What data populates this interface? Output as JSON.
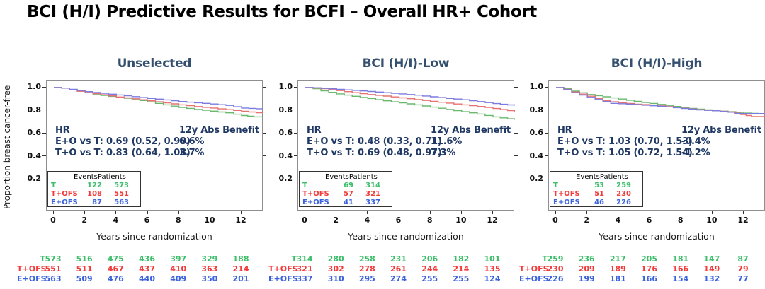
{
  "title": "BCI (H/I) Predictive Results for BCFI  – Overall HR+ Cohort",
  "y_axis_label": "Proportion breast cancer-free",
  "x_axis_label": "Years since randomization",
  "colors": {
    "curve": {
      "t": "#69B86E",
      "t_ofs": "#E87272",
      "e_ofs": "#7B7BE0"
    },
    "text": {
      "t": "#3DBE6B",
      "t_ofs": "#F23B3B",
      "e_ofs": "#3A62DD"
    },
    "panel_title": "#34506E",
    "hr_text": "#1F3864",
    "main_title": "#000000"
  },
  "axes": {
    "y_ticks": [
      "1.0",
      "0.8",
      "0.6",
      "0.4",
      "0.2"
    ],
    "x_ticks": [
      "0",
      "2",
      "4",
      "6",
      "8",
      "10",
      "12"
    ]
  },
  "panels": [
    {
      "title": "Unselected",
      "hr": {
        "header": "HR",
        "lines": [
          "E+O vs T: 0.69 (0.52, 0.90)",
          "T+O vs T: 0.83 (0.64, 1.08)"
        ]
      },
      "benefit": {
        "header": "12y Abs Benefit",
        "values": [
          "6.6%",
          "3.7%"
        ]
      },
      "events_table": {
        "header": "EventsPatients",
        "rows": [
          {
            "key": "t",
            "label": "T",
            "events": "122",
            "patients": "573"
          },
          {
            "key": "t_ofs",
            "label": "T+OFS",
            "events": "108",
            "patients": "551"
          },
          {
            "key": "e_ofs",
            "label": "E+OFS",
            "events": "87",
            "patients": "563"
          }
        ]
      },
      "at_risk": {
        "rows": [
          {
            "key": "t",
            "label": "T",
            "values": [
              "573",
              "516",
              "475",
              "436",
              "397",
              "329",
              "188"
            ]
          },
          {
            "key": "t_ofs",
            "label": "T+OFS",
            "values": [
              "551",
              "511",
              "467",
              "437",
              "410",
              "363",
              "214"
            ]
          },
          {
            "key": "e_ofs",
            "label": "E+OFS",
            "values": [
              "563",
              "509",
              "476",
              "440",
              "409",
              "350",
              "201"
            ]
          }
        ]
      }
    },
    {
      "title": "BCI (H/I)-Low",
      "hr": {
        "header": "HR",
        "lines": [
          "E+O vs T: 0.48 (0.33, 0.71)",
          "T+O vs T: 0.69 (0.48, 0.97)"
        ]
      },
      "benefit": {
        "header": "12y Abs Benefit",
        "values": [
          "11.6%",
          "7.3%"
        ]
      },
      "events_table": {
        "header": "EventsPatients",
        "rows": [
          {
            "key": "t",
            "label": "T",
            "events": "69",
            "patients": "314"
          },
          {
            "key": "t_ofs",
            "label": "T+OFS",
            "events": "57",
            "patients": "321"
          },
          {
            "key": "e_ofs",
            "label": "E+OFS",
            "events": "41",
            "patients": "337"
          }
        ]
      },
      "at_risk": {
        "rows": [
          {
            "key": "t",
            "label": "T",
            "values": [
              "314",
              "280",
              "258",
              "231",
              "206",
              "182",
              "101"
            ]
          },
          {
            "key": "t_ofs",
            "label": "T+OFS",
            "values": [
              "321",
              "302",
              "278",
              "261",
              "244",
              "214",
              "135"
            ]
          },
          {
            "key": "e_ofs",
            "label": "E+OFS",
            "values": [
              "337",
              "310",
              "295",
              "274",
              "255",
              "255",
              "124"
            ]
          }
        ]
      }
    },
    {
      "title": "BCI (H/I)-High",
      "hr": {
        "header": "HR",
        "lines": [
          "E+O vs T: 1.03 (0.70, 1.53)",
          "T+O vs T: 1.05 (0.72, 1.54)"
        ]
      },
      "benefit": {
        "header": "12y Abs Benefit",
        "values": [
          "-0.4%",
          "-1.2%"
        ]
      },
      "events_table": {
        "header": "EventsPatients",
        "rows": [
          {
            "key": "t",
            "label": "T",
            "events": "53",
            "patients": "259"
          },
          {
            "key": "t_ofs",
            "label": "T+OFS",
            "events": "51",
            "patients": "230"
          },
          {
            "key": "e_ofs",
            "label": "E+OFS",
            "events": "46",
            "patients": "226"
          }
        ]
      },
      "at_risk": {
        "rows": [
          {
            "key": "t",
            "label": "T",
            "values": [
              "259",
              "236",
              "217",
              "205",
              "181",
              "147",
              "87"
            ]
          },
          {
            "key": "t_ofs",
            "label": "T+OFS",
            "values": [
              "230",
              "209",
              "189",
              "176",
              "166",
              "149",
              "79"
            ]
          },
          {
            "key": "e_ofs",
            "label": "E+OFS",
            "values": [
              "226",
              "199",
              "181",
              "166",
              "154",
              "132",
              "77"
            ]
          }
        ]
      }
    }
  ],
  "chart_data": [
    {
      "type": "line",
      "subtype": "kaplan-meier-step",
      "title": "Unselected",
      "xlabel": "Years since randomization",
      "ylabel": "Proportion breast cancer-free",
      "xlim": [
        0,
        13.4
      ],
      "x_ticks": [
        0,
        2,
        4,
        6,
        8,
        10,
        12
      ],
      "y_ticks": [
        1.0,
        0.8,
        0.6,
        0.4,
        0.2
      ],
      "legend_position": "events-box lower-left",
      "series": [
        {
          "name": "T",
          "key": "t",
          "points": [
            [
              0,
              1.0
            ],
            [
              0.5,
              0.995
            ],
            [
              1,
              0.982
            ],
            [
              2,
              0.955
            ],
            [
              3,
              0.932
            ],
            [
              4,
              0.915
            ],
            [
              5,
              0.9
            ],
            [
              6,
              0.875
            ],
            [
              7,
              0.85
            ],
            [
              8,
              0.828
            ],
            [
              9,
              0.81
            ],
            [
              10,
              0.795
            ],
            [
              11,
              0.78
            ],
            [
              12,
              0.757
            ],
            [
              12.8,
              0.745
            ],
            [
              13.4,
              0.74
            ]
          ]
        },
        {
          "name": "T+OFS",
          "key": "t_ofs",
          "points": [
            [
              0,
              1.0
            ],
            [
              0.5,
              0.995
            ],
            [
              1,
              0.98
            ],
            [
              2,
              0.956
            ],
            [
              3,
              0.938
            ],
            [
              4,
              0.918
            ],
            [
              5,
              0.903
            ],
            [
              6,
              0.885
            ],
            [
              7,
              0.867
            ],
            [
              8,
              0.85
            ],
            [
              9,
              0.835
            ],
            [
              10,
              0.822
            ],
            [
              11,
              0.808
            ],
            [
              12,
              0.794
            ],
            [
              13.4,
              0.775
            ]
          ]
        },
        {
          "name": "E+OFS",
          "key": "e_ofs",
          "points": [
            [
              0,
              1.0
            ],
            [
              0.5,
              0.996
            ],
            [
              1,
              0.985
            ],
            [
              2,
              0.965
            ],
            [
              3,
              0.95
            ],
            [
              4,
              0.936
            ],
            [
              5,
              0.921
            ],
            [
              6,
              0.906
            ],
            [
              7,
              0.893
            ],
            [
              8,
              0.879
            ],
            [
              9,
              0.868
            ],
            [
              10,
              0.857
            ],
            [
              11,
              0.845
            ],
            [
              12,
              0.822
            ],
            [
              13.4,
              0.813
            ]
          ]
        }
      ]
    },
    {
      "type": "line",
      "subtype": "kaplan-meier-step",
      "title": "BCI (H/I)-Low",
      "xlabel": "Years since randomization",
      "ylabel": "Proportion breast cancer-free",
      "xlim": [
        0,
        13.4
      ],
      "x_ticks": [
        0,
        2,
        4,
        6,
        8,
        10,
        12
      ],
      "y_ticks": [
        1.0,
        0.8,
        0.6,
        0.4,
        0.2
      ],
      "legend_position": "events-box lower-left",
      "series": [
        {
          "name": "T",
          "key": "t",
          "points": [
            [
              0,
              1.0
            ],
            [
              0.5,
              0.99
            ],
            [
              1,
              0.972
            ],
            [
              2,
              0.945
            ],
            [
              3,
              0.924
            ],
            [
              4,
              0.905
            ],
            [
              5,
              0.885
            ],
            [
              6,
              0.867
            ],
            [
              7,
              0.85
            ],
            [
              8,
              0.83
            ],
            [
              9,
              0.81
            ],
            [
              10,
              0.79
            ],
            [
              11,
              0.77
            ],
            [
              12,
              0.745
            ],
            [
              13.4,
              0.72
            ]
          ]
        },
        {
          "name": "T+OFS",
          "key": "t_ofs",
          "points": [
            [
              0,
              1.0
            ],
            [
              0.5,
              0.997
            ],
            [
              1,
              0.99
            ],
            [
              2,
              0.974
            ],
            [
              3,
              0.956
            ],
            [
              4,
              0.94
            ],
            [
              5,
              0.926
            ],
            [
              6,
              0.911
            ],
            [
              7,
              0.896
            ],
            [
              8,
              0.88
            ],
            [
              9,
              0.865
            ],
            [
              10,
              0.85
            ],
            [
              11,
              0.836
            ],
            [
              12,
              0.818
            ],
            [
              13.4,
              0.79
            ]
          ]
        },
        {
          "name": "E+OFS",
          "key": "e_ofs",
          "points": [
            [
              0,
              1.0
            ],
            [
              0.5,
              0.998
            ],
            [
              1,
              0.994
            ],
            [
              2,
              0.985
            ],
            [
              3,
              0.976
            ],
            [
              4,
              0.966
            ],
            [
              5,
              0.956
            ],
            [
              6,
              0.945
            ],
            [
              7,
              0.934
            ],
            [
              8,
              0.92
            ],
            [
              9,
              0.906
            ],
            [
              10,
              0.894
            ],
            [
              11,
              0.878
            ],
            [
              12,
              0.861
            ],
            [
              13.4,
              0.843
            ]
          ]
        }
      ]
    },
    {
      "type": "line",
      "subtype": "kaplan-meier-step",
      "title": "BCI (H/I)-High",
      "xlabel": "Years since randomization",
      "ylabel": "Proportion breast cancer-free",
      "xlim": [
        0,
        13.4
      ],
      "x_ticks": [
        0,
        2,
        4,
        6,
        8,
        10,
        12
      ],
      "y_ticks": [
        1.0,
        0.8,
        0.6,
        0.4,
        0.2
      ],
      "legend_position": "events-box lower-left",
      "series": [
        {
          "name": "T",
          "key": "t",
          "points": [
            [
              0,
              1.0
            ],
            [
              0.5,
              0.99
            ],
            [
              1,
              0.97
            ],
            [
              2,
              0.94
            ],
            [
              3,
              0.92
            ],
            [
              4,
              0.9
            ],
            [
              5,
              0.88
            ],
            [
              6,
              0.862
            ],
            [
              7,
              0.845
            ],
            [
              8,
              0.826
            ],
            [
              9,
              0.812
            ],
            [
              10,
              0.8
            ],
            [
              11,
              0.79
            ],
            [
              12,
              0.778
            ],
            [
              13.4,
              0.77
            ]
          ]
        },
        {
          "name": "T+OFS",
          "key": "t_ofs",
          "points": [
            [
              0,
              1.0
            ],
            [
              0.5,
              0.985
            ],
            [
              1,
              0.962
            ],
            [
              2,
              0.925
            ],
            [
              3,
              0.885
            ],
            [
              4,
              0.868
            ],
            [
              5,
              0.856
            ],
            [
              6,
              0.847
            ],
            [
              7,
              0.835
            ],
            [
              8,
              0.82
            ],
            [
              9,
              0.808
            ],
            [
              10,
              0.798
            ],
            [
              11,
              0.788
            ],
            [
              11.8,
              0.766
            ],
            [
              12.5,
              0.748
            ],
            [
              13.4,
              0.748
            ]
          ]
        },
        {
          "name": "E+OFS",
          "key": "e_ofs",
          "points": [
            [
              0,
              1.0
            ],
            [
              0.5,
              0.982
            ],
            [
              1,
              0.956
            ],
            [
              2,
              0.915
            ],
            [
              3,
              0.878
            ],
            [
              3.5,
              0.863
            ],
            [
              4,
              0.86
            ],
            [
              5,
              0.852
            ],
            [
              6,
              0.842
            ],
            [
              7,
              0.832
            ],
            [
              8,
              0.818
            ],
            [
              9,
              0.806
            ],
            [
              10,
              0.798
            ],
            [
              11,
              0.786
            ],
            [
              11.5,
              0.774
            ],
            [
              12,
              0.774
            ],
            [
              13.4,
              0.774
            ]
          ]
        }
      ]
    }
  ]
}
